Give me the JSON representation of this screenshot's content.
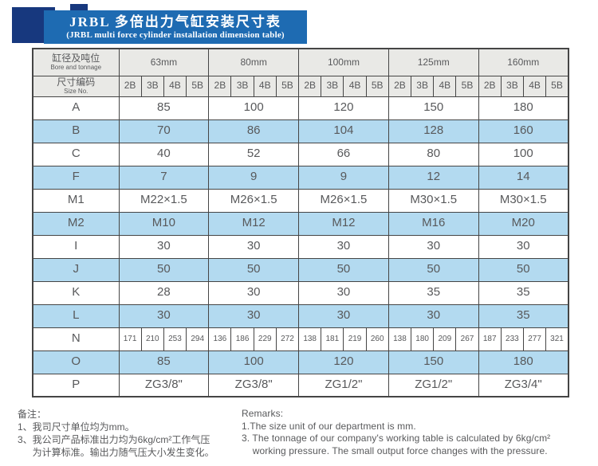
{
  "title": {
    "zh": "JRBL 多倍出力气缸安装尺寸表",
    "en": "(JRBL multi force cylinder installation dimension table)"
  },
  "table": {
    "corner_bore": {
      "zh": "缸径及吨位",
      "en": "Bore and tonnage"
    },
    "corner_size": {
      "zh": "尺寸编码",
      "en": "Size No."
    },
    "bores": [
      "63mm",
      "80mm",
      "100mm",
      "125mm",
      "160mm"
    ],
    "size_codes": [
      "2B",
      "3B",
      "4B",
      "5B"
    ],
    "rows": [
      {
        "label": "A",
        "merged": true,
        "values": [
          "85",
          "100",
          "120",
          "150",
          "180"
        ]
      },
      {
        "label": "B",
        "merged": true,
        "values": [
          "70",
          "86",
          "104",
          "128",
          "160"
        ]
      },
      {
        "label": "C",
        "merged": true,
        "values": [
          "40",
          "52",
          "66",
          "80",
          "100"
        ]
      },
      {
        "label": "F",
        "merged": true,
        "values": [
          "7",
          "9",
          "9",
          "12",
          "14"
        ]
      },
      {
        "label": "M1",
        "merged": true,
        "values": [
          "M22×1.5",
          "M26×1.5",
          "M26×1.5",
          "M30×1.5",
          "M30×1.5"
        ]
      },
      {
        "label": "M2",
        "merged": true,
        "values": [
          "M10",
          "M12",
          "M12",
          "M16",
          "M20"
        ]
      },
      {
        "label": "I",
        "merged": true,
        "values": [
          "30",
          "30",
          "30",
          "30",
          "30"
        ]
      },
      {
        "label": "J",
        "merged": true,
        "values": [
          "50",
          "50",
          "50",
          "50",
          "50"
        ]
      },
      {
        "label": "K",
        "merged": true,
        "values": [
          "28",
          "30",
          "30",
          "35",
          "35"
        ]
      },
      {
        "label": "L",
        "merged": true,
        "values": [
          "30",
          "30",
          "30",
          "30",
          "35"
        ]
      },
      {
        "label": "N",
        "merged": false,
        "values": [
          [
            "171",
            "210",
            "253",
            "294"
          ],
          [
            "136",
            "186",
            "229",
            "272"
          ],
          [
            "138",
            "181",
            "219",
            "260"
          ],
          [
            "138",
            "180",
            "209",
            "267"
          ],
          [
            "187",
            "233",
            "277",
            "321"
          ]
        ]
      },
      {
        "label": "O",
        "merged": true,
        "values": [
          "85",
          "100",
          "120",
          "150",
          "180"
        ]
      },
      {
        "label": "P",
        "merged": true,
        "values": [
          "ZG3/8\"",
          "ZG3/8\"",
          "ZG1/2\"",
          "ZG1/2\"",
          "ZG3/4\""
        ]
      }
    ]
  },
  "notes": {
    "zh": {
      "heading": "备注：",
      "lines": [
        "1、我司尺寸单位均为mm。",
        "3、我公司产品标准出力均为6kg/cm²工作气压",
        "　  为计算标准。输出力随气压大小发生变化。"
      ]
    },
    "en": {
      "heading": "Remarks:",
      "lines": [
        "1.The size unit of our department is mm.",
        "3. The tonnage of our company's working table is calculated by 6kg/cm²",
        "    working pressure. The small output force changes with the pressure."
      ]
    }
  },
  "colors": {
    "banner_blue": "#1e6bb2",
    "banner_navy": "#17387e",
    "row_blue": "#b3daf0",
    "header_gray": "#e9e9e6",
    "border": "#454545",
    "text_gray": "#58595b"
  }
}
